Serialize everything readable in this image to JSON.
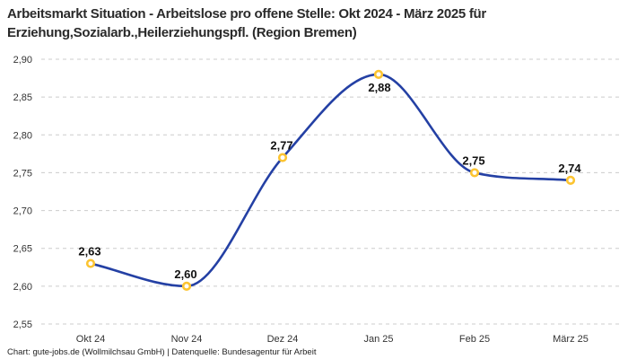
{
  "header": {
    "line1": "Arbeitsmarkt Situation - Arbeitslose pro offene Stelle: Okt 2024 - März 2025 für",
    "line2": "Erziehung,Sozialarb.,Heilerziehungspfl. (Region Bremen)"
  },
  "footer": {
    "credit": "Chart: gute-jobs.de (Wollmilchsau GmbH) | Datenquelle: Bundesagentur für Arbeit"
  },
  "chart_data": {
    "type": "line",
    "title": "Arbeitsmarkt Situation - Arbeitslose pro offene Stelle: Okt 2024 - März 2025 für Erziehung,Sozialarb.,Heilerziehungspfl. (Region Bremen)",
    "categories": [
      "Okt 24",
      "Nov 24",
      "Dez 24",
      "Jan 25",
      "Feb 25",
      "März 25"
    ],
    "values": [
      2.63,
      2.6,
      2.77,
      2.88,
      2.75,
      2.74
    ],
    "point_labels": [
      "2,63",
      "2,60",
      "2,77",
      "2,88",
      "2,75",
      "2,74"
    ],
    "point_label_position": [
      "above",
      "above",
      "above",
      "below",
      "above",
      "above"
    ],
    "yticks": [
      {
        "value": 2.9,
        "label": "2,90"
      },
      {
        "value": 2.85,
        "label": "2,85"
      },
      {
        "value": 2.8,
        "label": "2,80"
      },
      {
        "value": 2.75,
        "label": "2,75"
      },
      {
        "value": 2.7,
        "label": "2,70"
      },
      {
        "value": 2.65,
        "label": "2,65"
      },
      {
        "value": 2.6,
        "label": "2,60"
      },
      {
        "value": 2.55,
        "label": "2,55"
      }
    ],
    "ylim": [
      2.55,
      2.9
    ],
    "xlabel": "",
    "ylabel": "",
    "grid": "dashed-horizontal",
    "legend": "none",
    "curve": "smooth-monotone",
    "colors": {
      "line": "#2440a4",
      "marker_ring": "#fcc431",
      "marker_fill": "#ffffff",
      "grid": "#cccccc",
      "tick_text": "#333333",
      "point_label_text": "#111111"
    }
  }
}
